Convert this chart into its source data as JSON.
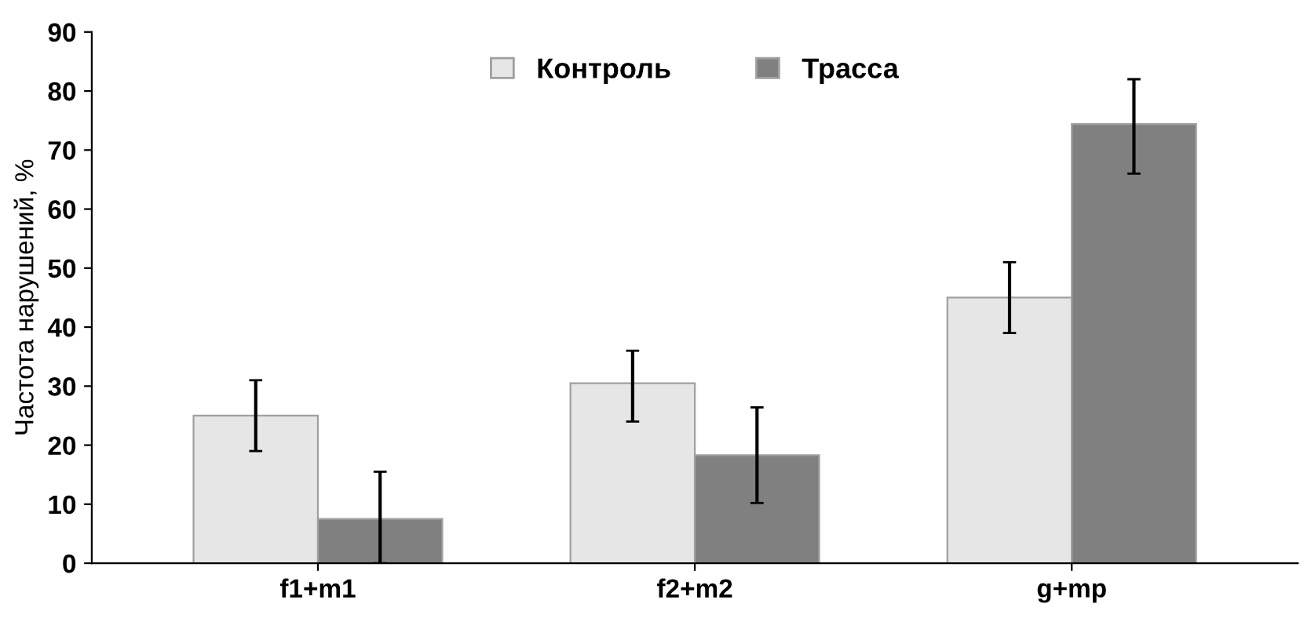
{
  "chart_data": {
    "type": "bar",
    "ylabel": "Частота нарушений, %",
    "categories": [
      "f1+m1",
      "f2+m2",
      "g+mp"
    ],
    "series": [
      {
        "name": "Контроль",
        "color": "#e6e6e6",
        "values": [
          25,
          30.5,
          45
        ],
        "errors": [
          [
            19,
            31
          ],
          [
            24,
            36
          ],
          [
            39,
            51
          ]
        ]
      },
      {
        "name": "Трасса",
        "color": "#808080",
        "values": [
          7.5,
          18.3,
          74.4
        ],
        "errors": [
          [
            0,
            15.5
          ],
          [
            10.2,
            26.4
          ],
          [
            66,
            82
          ]
        ]
      }
    ],
    "ylim": [
      0,
      90
    ],
    "yticks": [
      0,
      10,
      20,
      30,
      40,
      50,
      60,
      70,
      80,
      90
    ],
    "grid": false,
    "legend": "top"
  }
}
